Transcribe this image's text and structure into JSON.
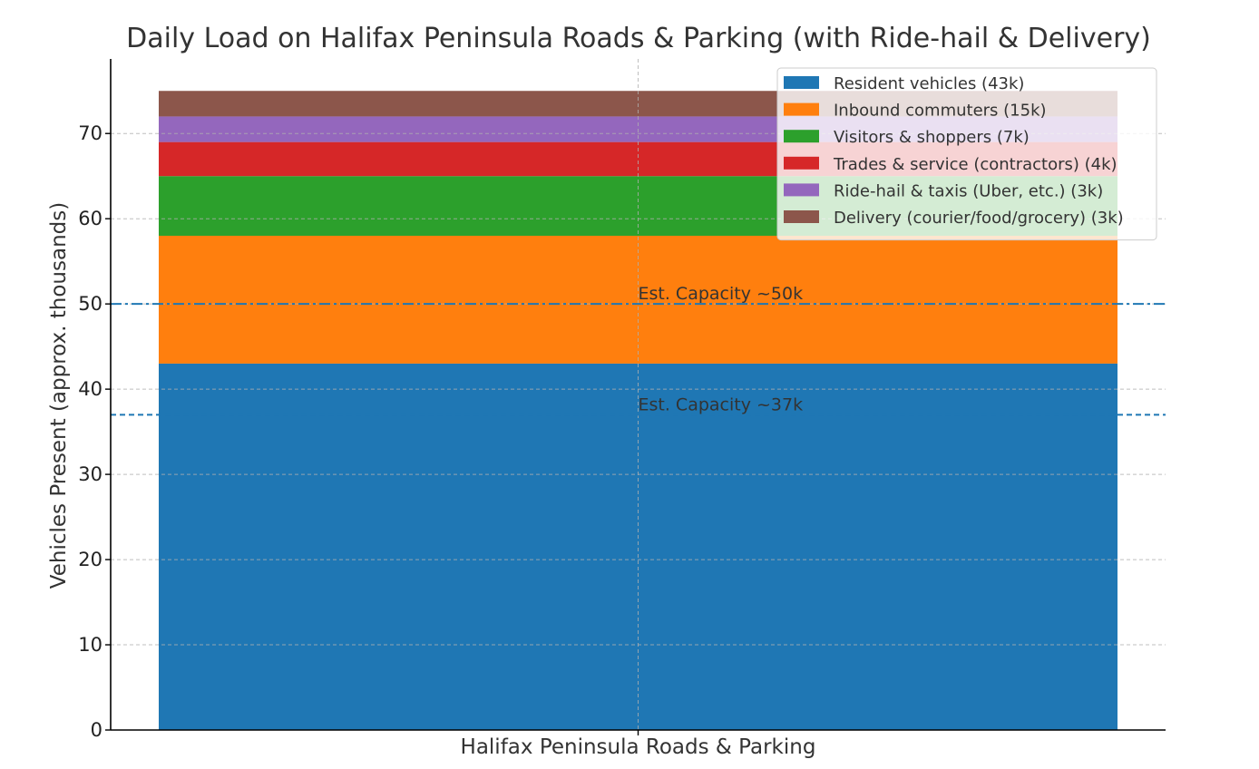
{
  "chart_data": {
    "type": "bar",
    "subtype": "stacked",
    "title": "Daily Load on Halifax Peninsula Roads & Parking (with Ride-hail & Delivery)",
    "xlabel": "",
    "ylabel": "Vehicles Present (approx. thousands)",
    "categories": [
      "Halifax Peninsula Roads & Parking"
    ],
    "ylim": [
      0,
      78.75
    ],
    "yticks": [
      0,
      10,
      20,
      30,
      40,
      50,
      60,
      70
    ],
    "grid": true,
    "legend_position": "top-right",
    "series": [
      {
        "name": "Resident vehicles (43k)",
        "values": [
          43
        ],
        "color": "#1f77b4"
      },
      {
        "name": "Inbound commuters (15k)",
        "values": [
          15
        ],
        "color": "#ff7f0e"
      },
      {
        "name": "Visitors & shoppers (7k)",
        "values": [
          7
        ],
        "color": "#2ca02c"
      },
      {
        "name": "Trades & service (contractors) (4k)",
        "values": [
          4
        ],
        "color": "#d62728"
      },
      {
        "name": "Ride-hail & taxis (Uber, etc.) (3k)",
        "values": [
          3
        ],
        "color": "#9467bd"
      },
      {
        "name": "Delivery (courier/food/grocery) (3k)",
        "values": [
          3
        ],
        "color": "#8c564b"
      }
    ],
    "reference_lines": [
      {
        "label": "Est. Capacity ~50k",
        "value": 50,
        "style": "dashdot",
        "color": "#1f77b4"
      },
      {
        "label": "Est. Capacity ~37k",
        "value": 37,
        "style": "dashed",
        "color": "#1f77b4"
      }
    ]
  }
}
